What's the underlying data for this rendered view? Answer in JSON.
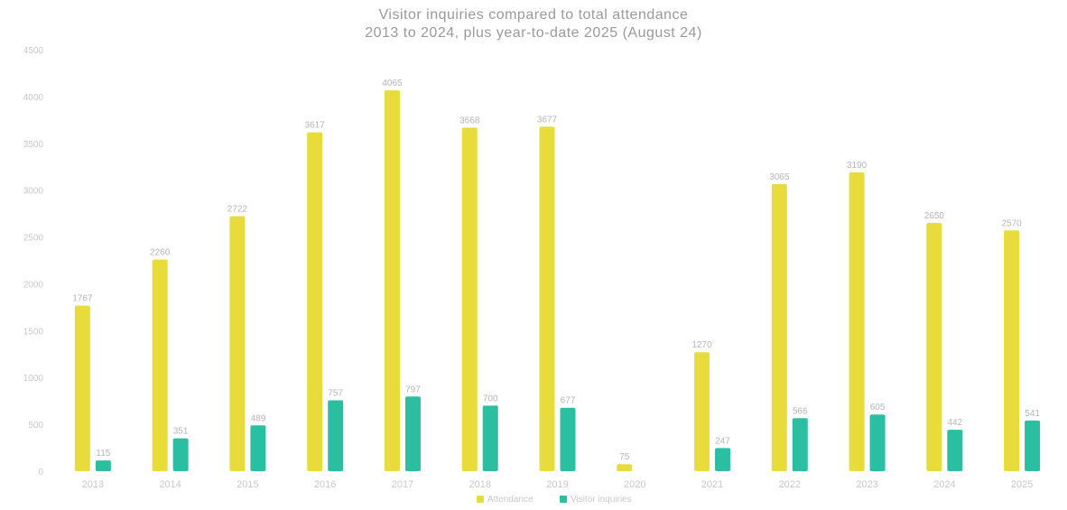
{
  "chart_data": {
    "type": "bar",
    "title": "Visitor inquiries compared to total attendance",
    "subtitle": "2013 to 2024, plus year-to-date 2025 (August 24)",
    "categories": [
      "2013",
      "2014",
      "2015",
      "2016",
      "2017",
      "2018",
      "2019",
      "2020",
      "2021",
      "2022",
      "2023",
      "2024",
      "2025"
    ],
    "series": [
      {
        "name": "Attendance",
        "color": "#e8dc3c",
        "values": [
          1767,
          2260,
          2722,
          3617,
          4065,
          3668,
          3677,
          75,
          1270,
          3065,
          3190,
          2650,
          2570
        ]
      },
      {
        "name": "Visitor inquiries",
        "color": "#2bbfa2",
        "values": [
          115,
          351,
          489,
          757,
          797,
          700,
          677,
          null,
          247,
          566,
          605,
          442,
          541
        ]
      }
    ],
    "ylim": [
      0,
      4500
    ],
    "yticks": [
      0,
      500,
      1000,
      1500,
      2000,
      2500,
      3000,
      3500,
      4000,
      4500
    ],
    "grid": false,
    "legend": "bottom"
  }
}
